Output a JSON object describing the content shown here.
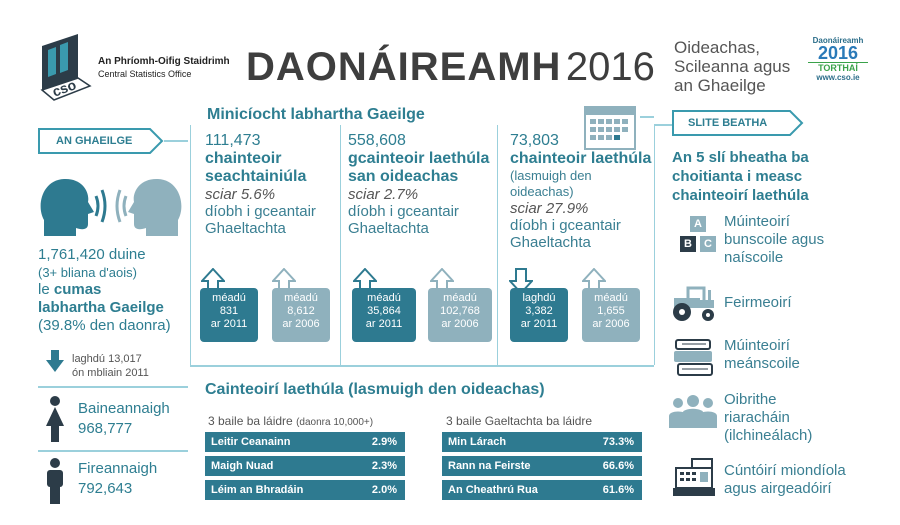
{
  "header": {
    "org_name": "An Phríomh-Oifig Staidrimh",
    "org_name_en": "Central Statistics Office",
    "logo_letters": "cso",
    "title": "DAONÁIREAMH",
    "year": "2016",
    "subtitle": [
      "Oideachas,",
      "Scileanna agus",
      "an Ghaeilge"
    ],
    "census_logo": {
      "line1": "Daonáireamh",
      "line2": "2016",
      "line3": "TORTHAÍ",
      "line4": "www.cso.ie"
    }
  },
  "left": {
    "badge": "AN GHAEILGE",
    "total": "1,761,420 duine",
    "age_note": "(3+ bliana d'aois)",
    "ability_prefix": "le",
    "ability_bold1": "cumas",
    "ability_bold2": "labhartha Gaeilge",
    "pct_pop": "(39.8% den daonra)",
    "decrease_line1": "laghdú 13,017",
    "decrease_line2": "ón mbliain 2011",
    "female_label": "Baineannaigh",
    "female_value": "968,777",
    "male_label": "Fireannaigh",
    "male_value": "792,643"
  },
  "middle": {
    "title": "Minicíocht labhartha Gaeilge",
    "columns": [
      {
        "number": "111,473",
        "bold": [
          "chainteoir",
          "seachtainiúla"
        ],
        "extra": [],
        "share": "sciar 5.6%",
        "desc": [
          "díobh i gceantair",
          "Ghaeltachta"
        ],
        "change1": {
          "dir": "up",
          "label": "méadú",
          "value": "831",
          "ref": "ar 2011"
        },
        "change2": {
          "dir": "up",
          "label": "méadú",
          "value": "8,612",
          "ref": "ar 2006"
        }
      },
      {
        "number": "558,608",
        "bold": [
          "gcainteoir laethúla",
          "san oideachas"
        ],
        "extra": [],
        "share": "sciar 2.7%",
        "desc": [
          "díobh i gceantair",
          "Ghaeltachta"
        ],
        "change1": {
          "dir": "up",
          "label": "méadú",
          "value": "35,864",
          "ref": "ar 2011"
        },
        "change2": {
          "dir": "up",
          "label": "méadú",
          "value": "102,768",
          "ref": "ar 2006"
        }
      },
      {
        "number": "73,803",
        "bold": [
          "chainteoir laethúla"
        ],
        "extra": [
          "(lasmuigh den",
          "oideachas)"
        ],
        "share": "sciar 27.9%",
        "desc": [
          "díobh i gceantair",
          "Ghaeltachta"
        ],
        "change1": {
          "dir": "down",
          "label": "laghdú",
          "value": "3,382",
          "ref": "ar 2011"
        },
        "change2": {
          "dir": "up",
          "label": "méadú",
          "value": "1,655",
          "ref": "ar 2006"
        }
      }
    ],
    "daily_title": "Cainteoirí laethúla (lasmuigh den oideachas)",
    "towns_title": "3 baile ba láidre",
    "towns_note": "(daonra 10,000+)",
    "towns": [
      {
        "name": "Leitir Ceanainn",
        "pct": "2.9%"
      },
      {
        "name": "Maigh Nuad",
        "pct": "2.3%"
      },
      {
        "name": "Léim an Bhradáin",
        "pct": "2.0%"
      }
    ],
    "gaeltacht_title": "3 baile Gaeltachta ba láidre",
    "gaeltacht": [
      {
        "name": "Min Lárach",
        "pct": "73.3%"
      },
      {
        "name": "Rann na Feirste",
        "pct": "66.6%"
      },
      {
        "name": "An Cheathrú Rua",
        "pct": "61.6%"
      }
    ]
  },
  "right": {
    "badge": "SLITE BEATHA",
    "title": [
      "An 5 slí bheatha ba",
      "choitianta i measc",
      "chainteoirí laethúla"
    ],
    "occupations": [
      {
        "icon": "abc-blocks-icon",
        "lines": [
          "Múinteoirí",
          "bunscoile agus",
          "naíscoile"
        ]
      },
      {
        "icon": "tractor-icon",
        "lines": [
          "Feirmeoirí"
        ]
      },
      {
        "icon": "books-icon",
        "lines": [
          "Múinteoirí",
          "meánscoile"
        ]
      },
      {
        "icon": "people-group-icon",
        "lines": [
          "Oibrithe",
          "riaracháin",
          "(ilchineálach)"
        ]
      },
      {
        "icon": "cash-register-icon",
        "lines": [
          "Cúntóirí miondíola",
          "agus airgeadóirí"
        ]
      }
    ],
    "abc_letters": [
      "A",
      "B",
      "C"
    ]
  },
  "colors": {
    "accent": "#2e7a90",
    "light": "#8fb1bd",
    "line": "#9bd0dc"
  }
}
